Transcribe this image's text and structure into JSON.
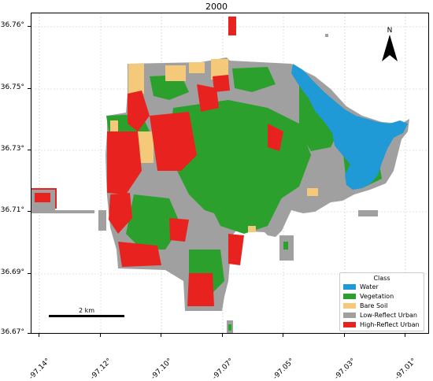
{
  "title": "2000",
  "axes": {
    "y_ticks": [
      "36.76°",
      "36.75°",
      "36.73°",
      "36.71°",
      "36.69°",
      "36.67°"
    ],
    "x_ticks": [
      "-97.14°",
      "-97.12°",
      "-97.10°",
      "-97.07°",
      "-97.05°",
      "-97.03°",
      "-97.01°"
    ]
  },
  "north_arrow": {
    "label": "N",
    "icon": "north-arrow-icon"
  },
  "scale_bar": {
    "label": "2 km"
  },
  "legend": {
    "title": "Class",
    "items": [
      {
        "label": "Water",
        "color": "#1f9ad6"
      },
      {
        "label": "Vegetation",
        "color": "#2ca02c"
      },
      {
        "label": "Bare Soil",
        "color": "#f5c97a"
      },
      {
        "label": "Low-Reflect Urban",
        "color": "#a0a0a0"
      },
      {
        "label": "High-Reflect Urban",
        "color": "#e8231f"
      }
    ]
  },
  "grid": true
}
